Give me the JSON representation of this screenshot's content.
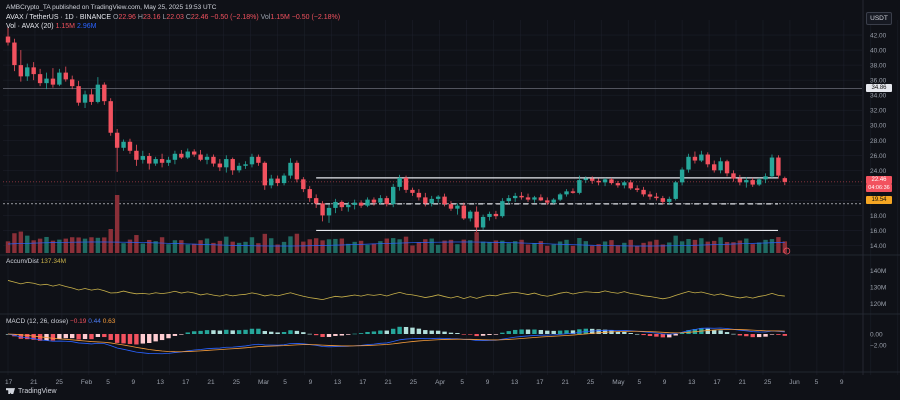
{
  "publisher": "AMBCrypto_TA published on TradingView.com, May 25, 2025 19:53 UTC",
  "header": {
    "symbol": "AVAX / TetherUS · 1D · BINANCE",
    "o_label": "O",
    "o_value": "22.96",
    "h_label": "H",
    "h_value": "23.16",
    "l_label": "L",
    "l_value": "22.03",
    "c_label": "C",
    "c_value": "22.46",
    "change": "−0.50 (−2.18%)",
    "vol_label": "Vol",
    "vol_value": "1.15M",
    "vol_change": "−0.50 (−2.18%)",
    "vol_line": "Vol · AVAX (20)",
    "vol_val1": "1.15M",
    "vol_val2": "2.96M"
  },
  "currency": "USDT",
  "price_axis": [
    "42.00",
    "40.00",
    "38.00",
    "36.00",
    "34.00",
    "32.00",
    "30.00",
    "28.00",
    "26.00",
    "24.00",
    "22.00",
    "20.00",
    "18.00",
    "16.00",
    "14.00"
  ],
  "price_badges": {
    "resistance": "34.86",
    "last": "22.46",
    "countdown": "04:06:36",
    "support": "19.54"
  },
  "accum": {
    "label": "Accum/Dist",
    "value": "137.34M",
    "axis": [
      "140M",
      "130M",
      "120M"
    ]
  },
  "macd": {
    "label": "MACD (12, 26, close)",
    "hist": "−0.19",
    "macd": "0.44",
    "signal": "0.63",
    "axis": [
      "0.00",
      "−2.00"
    ]
  },
  "time_axis": [
    "17",
    "21",
    "25",
    "Feb",
    "5",
    "9",
    "13",
    "17",
    "21",
    "25",
    "Mar",
    "5",
    "9",
    "13",
    "17",
    "21",
    "25",
    "Apr",
    "5",
    "9",
    "13",
    "17",
    "21",
    "25",
    "May",
    "5",
    "9",
    "13",
    "17",
    "21",
    "25",
    "Jun",
    "5",
    "9"
  ],
  "footer": "TradingView",
  "colors": {
    "up": "#26a69a",
    "down": "#f2525f",
    "bg": "#0f1117",
    "grid": "#1e222d"
  },
  "chart_data": {
    "type": "candlestick",
    "period": "1D",
    "ylim": [
      13,
      44
    ],
    "levels": [
      34.86,
      23.0,
      19.54,
      16.0
    ],
    "candles": [
      [
        41.8,
        43.0,
        40.6,
        41.0
      ],
      [
        41.0,
        41.5,
        37.2,
        38.0
      ],
      [
        38.0,
        40.0,
        35.8,
        36.5
      ],
      [
        36.5,
        38.2,
        35.9,
        37.7
      ],
      [
        37.7,
        38.4,
        36.0,
        36.8
      ],
      [
        36.8,
        37.5,
        35.2,
        35.6
      ],
      [
        35.6,
        37.0,
        34.8,
        36.2
      ],
      [
        36.2,
        37.6,
        35.0,
        35.4
      ],
      [
        35.4,
        37.5,
        35.2,
        37.0
      ],
      [
        37.0,
        37.8,
        35.8,
        36.1
      ],
      [
        36.1,
        36.6,
        34.8,
        35.2
      ],
      [
        35.2,
        35.9,
        32.6,
        33.0
      ],
      [
        33.0,
        34.6,
        32.3,
        34.1
      ],
      [
        34.1,
        34.8,
        32.7,
        33.1
      ],
      [
        33.1,
        36.4,
        32.9,
        35.4
      ],
      [
        35.4,
        35.7,
        32.7,
        33.2
      ],
      [
        33.2,
        33.6,
        28.6,
        29.0
      ],
      [
        29.0,
        29.5,
        23.8,
        27.0
      ],
      [
        27.0,
        28.1,
        26.6,
        27.8
      ],
      [
        27.8,
        28.2,
        26.2,
        26.6
      ],
      [
        26.6,
        27.4,
        24.6,
        25.4
      ],
      [
        25.4,
        26.6,
        24.9,
        25.9
      ],
      [
        25.9,
        26.3,
        24.1,
        24.9
      ],
      [
        24.9,
        25.8,
        24.6,
        25.5
      ],
      [
        25.5,
        26.2,
        24.4,
        25.0
      ],
      [
        25.0,
        25.8,
        24.6,
        25.4
      ],
      [
        25.4,
        26.6,
        24.8,
        26.2
      ],
      [
        26.2,
        26.7,
        25.5,
        25.7
      ],
      [
        25.7,
        26.9,
        25.5,
        26.5
      ],
      [
        26.5,
        26.8,
        25.8,
        26.1
      ],
      [
        26.1,
        26.7,
        25.2,
        25.4
      ],
      [
        25.4,
        26.2,
        24.8,
        25.8
      ],
      [
        25.8,
        26.1,
        24.5,
        24.9
      ],
      [
        24.9,
        25.5,
        23.9,
        24.4
      ],
      [
        24.4,
        26.0,
        23.7,
        25.5
      ],
      [
        25.5,
        25.7,
        23.4,
        24.0
      ],
      [
        24.0,
        25.0,
        23.7,
        24.6
      ],
      [
        24.6,
        25.2,
        24.2,
        24.8
      ],
      [
        24.8,
        26.2,
        24.4,
        25.8
      ],
      [
        25.8,
        26.1,
        24.6,
        25.0
      ],
      [
        25.0,
        25.2,
        21.4,
        22.0
      ],
      [
        22.0,
        23.4,
        21.6,
        22.9
      ],
      [
        22.9,
        23.3,
        21.9,
        22.3
      ],
      [
        22.3,
        23.6,
        22.0,
        23.3
      ],
      [
        23.3,
        25.6,
        22.9,
        25.0
      ],
      [
        25.0,
        25.3,
        22.4,
        22.8
      ],
      [
        22.8,
        23.1,
        21.1,
        21.5
      ],
      [
        21.5,
        21.9,
        19.8,
        20.3
      ],
      [
        20.3,
        20.8,
        19.0,
        19.6
      ],
      [
        19.6,
        19.9,
        17.2,
        18.0
      ],
      [
        18.0,
        19.4,
        17.0,
        19.0
      ],
      [
        19.0,
        20.2,
        18.3,
        19.8
      ],
      [
        19.8,
        20.0,
        18.6,
        19.1
      ],
      [
        19.1,
        19.8,
        18.5,
        19.4
      ],
      [
        19.4,
        20.1,
        18.8,
        19.7
      ],
      [
        19.7,
        20.0,
        19.0,
        19.3
      ],
      [
        19.3,
        20.4,
        19.1,
        20.1
      ],
      [
        20.1,
        20.4,
        19.3,
        19.7
      ],
      [
        19.7,
        20.7,
        19.5,
        20.3
      ],
      [
        20.3,
        20.6,
        19.2,
        19.5
      ],
      [
        19.5,
        22.2,
        19.1,
        21.8
      ],
      [
        21.8,
        23.4,
        21.3,
        23.0
      ],
      [
        23.0,
        23.3,
        21.0,
        21.4
      ],
      [
        21.4,
        21.7,
        20.6,
        21.0
      ],
      [
        21.0,
        21.5,
        20.0,
        20.4
      ],
      [
        20.4,
        21.0,
        19.2,
        19.6
      ],
      [
        19.6,
        20.6,
        19.2,
        20.2
      ],
      [
        20.2,
        20.7,
        19.7,
        20.5
      ],
      [
        20.5,
        20.9,
        19.2,
        19.5
      ],
      [
        19.5,
        19.9,
        18.6,
        18.9
      ],
      [
        18.9,
        19.6,
        18.1,
        19.3
      ],
      [
        19.3,
        19.7,
        17.4,
        17.6
      ],
      [
        17.6,
        18.7,
        17.2,
        18.5
      ],
      [
        18.5,
        19.2,
        15.8,
        16.4
      ],
      [
        16.4,
        18.1,
        16.1,
        17.8
      ],
      [
        17.8,
        18.5,
        17.3,
        18.2
      ],
      [
        18.2,
        18.6,
        17.5,
        17.9
      ],
      [
        17.9,
        20.3,
        17.7,
        19.9
      ],
      [
        19.9,
        20.7,
        19.5,
        20.3
      ],
      [
        20.3,
        21.0,
        19.8,
        20.6
      ],
      [
        20.6,
        21.1,
        20.1,
        20.4
      ],
      [
        20.4,
        20.9,
        19.8,
        20.1
      ],
      [
        20.1,
        20.6,
        19.7,
        20.4
      ],
      [
        20.4,
        20.8,
        19.9,
        20.0
      ],
      [
        20.0,
        20.4,
        19.4,
        19.7
      ],
      [
        19.7,
        20.3,
        19.5,
        20.1
      ],
      [
        20.1,
        21.0,
        19.9,
        20.8
      ],
      [
        20.8,
        21.5,
        20.5,
        21.2
      ],
      [
        21.2,
        21.6,
        20.9,
        21.0
      ],
      [
        21.0,
        23.3,
        20.8,
        22.7
      ],
      [
        22.7,
        23.2,
        22.3,
        22.9
      ],
      [
        22.9,
        23.2,
        22.2,
        22.6
      ],
      [
        22.6,
        22.9,
        22.0,
        22.4
      ],
      [
        22.4,
        23.0,
        21.9,
        22.8
      ],
      [
        22.8,
        23.0,
        22.1,
        22.3
      ],
      [
        22.3,
        22.6,
        21.7,
        22.0
      ],
      [
        22.0,
        22.6,
        21.6,
        22.4
      ],
      [
        22.4,
        22.7,
        21.4,
        21.6
      ],
      [
        21.6,
        22.0,
        21.1,
        21.4
      ],
      [
        21.4,
        21.8,
        20.5,
        20.8
      ],
      [
        20.8,
        21.2,
        20.1,
        20.5
      ],
      [
        20.5,
        21.0,
        20.0,
        20.3
      ],
      [
        20.3,
        20.6,
        19.5,
        19.8
      ],
      [
        19.8,
        20.5,
        19.4,
        20.2
      ],
      [
        20.2,
        22.6,
        20.0,
        22.4
      ],
      [
        22.4,
        24.4,
        22.0,
        24.1
      ],
      [
        24.1,
        26.2,
        23.7,
        25.8
      ],
      [
        25.8,
        26.5,
        24.9,
        25.3
      ],
      [
        25.3,
        26.6,
        25.1,
        26.1
      ],
      [
        26.1,
        26.4,
        24.4,
        24.8
      ],
      [
        24.8,
        25.3,
        23.7,
        24.0
      ],
      [
        24.0,
        25.7,
        23.6,
        25.2
      ],
      [
        25.2,
        25.4,
        23.2,
        23.6
      ],
      [
        23.6,
        24.0,
        22.5,
        22.9
      ],
      [
        22.9,
        23.4,
        22.0,
        22.4
      ],
      [
        22.4,
        23.1,
        21.7,
        22.7
      ],
      [
        22.7,
        23.0,
        21.8,
        22.1
      ],
      [
        22.1,
        23.0,
        21.9,
        22.8
      ],
      [
        22.8,
        23.6,
        22.3,
        23.2
      ],
      [
        23.2,
        26.1,
        23.0,
        25.7
      ],
      [
        25.7,
        26.0,
        22.9,
        23.3
      ],
      [
        22.96,
        23.16,
        22.03,
        22.46
      ]
    ]
  }
}
